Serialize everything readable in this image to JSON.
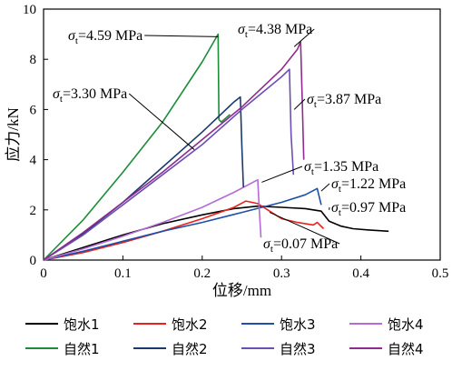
{
  "chart_data": {
    "type": "line",
    "xlabel": "位移/mm",
    "ylabel": "应力/kN",
    "xlim": [
      0,
      0.5
    ],
    "ylim": [
      0,
      10
    ],
    "xticks": [
      "0",
      "0.1",
      "0.2",
      "0.3",
      "0.4",
      "0.5"
    ],
    "yticks": [
      "0",
      "2",
      "4",
      "6",
      "8",
      "10"
    ],
    "grid": false,
    "legend_position": "bottom",
    "series": [
      {
        "name": "饱水1",
        "color": "#000000",
        "x": [
          0,
          0.05,
          0.1,
          0.15,
          0.2,
          0.24,
          0.27,
          0.3,
          0.33,
          0.35,
          0.36,
          0.375,
          0.39,
          0.41,
          0.435
        ],
        "y": [
          0,
          0.5,
          1.0,
          1.45,
          1.8,
          2.05,
          2.15,
          2.1,
          2.05,
          1.95,
          1.55,
          1.35,
          1.25,
          1.2,
          1.15
        ]
      },
      {
        "name": "饱水2",
        "color": "#e8221c",
        "x": [
          0,
          0.05,
          0.1,
          0.15,
          0.2,
          0.24,
          0.255,
          0.27,
          0.285,
          0.3,
          0.32,
          0.34,
          0.345,
          0.353
        ],
        "y": [
          0,
          0.3,
          0.7,
          1.15,
          1.65,
          2.1,
          2.35,
          2.25,
          1.95,
          1.65,
          1.5,
          1.4,
          1.5,
          1.25
        ]
      },
      {
        "name": "饱水3",
        "color": "#1f4fa8",
        "x": [
          0,
          0.05,
          0.1,
          0.15,
          0.2,
          0.25,
          0.3,
          0.33,
          0.345,
          0.35
        ],
        "y": [
          0,
          0.35,
          0.75,
          1.15,
          1.5,
          1.9,
          2.3,
          2.6,
          2.85,
          2.2
        ]
      },
      {
        "name": "饱水4",
        "color": "#b56bd6",
        "x": [
          0,
          0.05,
          0.1,
          0.15,
          0.2,
          0.24,
          0.27,
          0.272,
          0.274
        ],
        "y": [
          0,
          0.45,
          0.95,
          1.5,
          2.1,
          2.7,
          3.2,
          2.0,
          0.9
        ]
      },
      {
        "name": "自然1",
        "color": "#1e8b3a",
        "x": [
          0,
          0.05,
          0.1,
          0.15,
          0.2,
          0.22,
          0.221,
          0.224,
          0.235
        ],
        "y": [
          0,
          1.6,
          3.5,
          5.5,
          7.9,
          9.0,
          5.6,
          5.5,
          5.8
        ]
      },
      {
        "name": "自然2",
        "color": "#1a3a6e",
        "x": [
          0,
          0.05,
          0.1,
          0.15,
          0.2,
          0.24,
          0.248,
          0.25,
          0.252
        ],
        "y": [
          0,
          1.05,
          2.3,
          3.7,
          5.1,
          6.3,
          6.5,
          4.5,
          2.9
        ]
      },
      {
        "name": "自然3",
        "color": "#6b4fb5",
        "x": [
          0,
          0.05,
          0.1,
          0.15,
          0.2,
          0.25,
          0.3,
          0.31,
          0.312,
          0.315
        ],
        "y": [
          0,
          1.0,
          2.2,
          3.4,
          4.6,
          6.0,
          7.3,
          7.6,
          5.0,
          3.4
        ]
      },
      {
        "name": "自然4",
        "color": "#8e2c8e",
        "x": [
          0,
          0.05,
          0.1,
          0.15,
          0.2,
          0.25,
          0.3,
          0.32,
          0.324,
          0.326,
          0.328
        ],
        "y": [
          0,
          1.1,
          2.3,
          3.5,
          4.8,
          6.1,
          7.6,
          8.4,
          8.7,
          6.5,
          4.0
        ]
      }
    ],
    "annotations": [
      {
        "sub": "t",
        "value": "=4.59 MPa",
        "series": "自然1"
      },
      {
        "sub": "t",
        "value": "=4.38 MPa",
        "series": "自然4"
      },
      {
        "sub": "t",
        "value": "=3.30 MPa",
        "series": "自然2"
      },
      {
        "sub": "t",
        "value": "=3.87 MPa",
        "series": "自然3"
      },
      {
        "sub": "t",
        "value": "=1.35 MPa",
        "series": "饱水4"
      },
      {
        "sub": "t",
        "value": "=1.22 MPa",
        "series": "饱水3"
      },
      {
        "sub": "t",
        "value": "=0.97 MPa",
        "series": "饱水1"
      },
      {
        "sub": "t",
        "value": "=0.07 MPa",
        "series": "饱水2"
      }
    ]
  }
}
